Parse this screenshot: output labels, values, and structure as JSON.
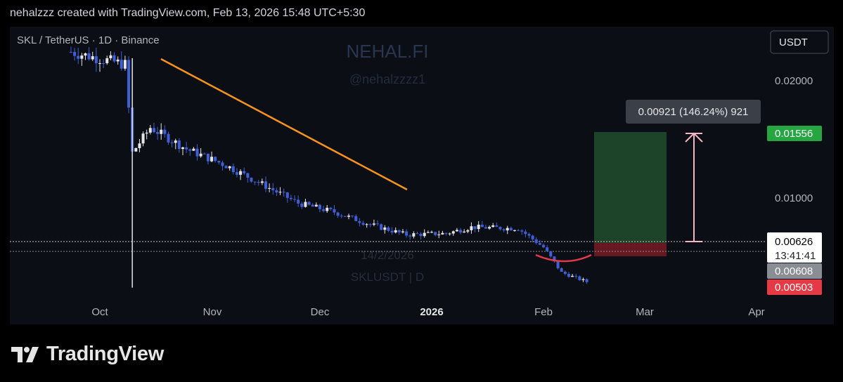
{
  "header": {
    "caption": "nehalzzz created with TradingView.com, Feb 13, 2026 15:48 UTC+5:30"
  },
  "symbol_info": "SKL / TetherUS · 1D · Binance",
  "currency_button": "USDT",
  "watermark": {
    "title": "NEHAL.FI",
    "handle": "@nehalzzzz1",
    "date": "14/2/2026",
    "ticker": "SKLUSDT | D"
  },
  "measure_label": "0.00921 (146.24%) 921",
  "price_tags": {
    "target": "0.01556",
    "last": "0.00626",
    "countdown": "13:41:41",
    "entry": "0.00608",
    "stop": "0.00503"
  },
  "footer": {
    "brand": "TradingView"
  },
  "colors": {
    "up_candle": "#e6e6e6",
    "down_candle": "#3f5fd6",
    "trendline": "#f7931a",
    "target_zone": "#1f4a2a",
    "stop_zone": "#6b1a22",
    "measure_arrow": "#f4b6c2",
    "support_arc": "#e0394a",
    "target_tag": "#26a641",
    "stop_tag": "#e53946",
    "entry_tag": "#8a8d94"
  },
  "chart_data": {
    "type": "candlestick",
    "pair": "SKLUSDT",
    "interval": "1D",
    "y_axis_ticks": [
      "0.02000",
      "0.01000"
    ],
    "x_axis_ticks": [
      "Oct",
      "Nov",
      "Dec",
      "2026",
      "Feb",
      "Mar",
      "Apr"
    ],
    "ylim": [
      0.0045,
      0.0265
    ],
    "approx_close_path": [
      [
        "2025-09-23",
        0.0245
      ],
      [
        "2025-10-08",
        0.0235
      ],
      [
        "2025-10-10",
        0.0165
      ],
      [
        "2025-10-15",
        0.0185
      ],
      [
        "2025-10-25",
        0.0168
      ],
      [
        "2025-11-05",
        0.0155
      ],
      [
        "2025-11-15",
        0.014
      ],
      [
        "2025-11-25",
        0.0125
      ],
      [
        "2025-12-05",
        0.0118
      ],
      [
        "2025-12-15",
        0.0108
      ],
      [
        "2025-12-25",
        0.01
      ],
      [
        "2026-01-05",
        0.0101
      ],
      [
        "2026-01-12",
        0.0106
      ],
      [
        "2026-01-25",
        0.0105
      ],
      [
        "2026-02-01",
        0.009
      ],
      [
        "2026-02-06",
        0.007
      ],
      [
        "2026-02-13",
        0.00626
      ]
    ],
    "trendline": [
      [
        "2025-10-15",
        0.0216
      ],
      [
        "2025-12-26",
        0.0105
      ]
    ],
    "position": {
      "target": 0.01556,
      "entry": 0.00608,
      "stop": 0.00503,
      "measure": "0.00921 (146.24%) 921"
    },
    "last_price": 0.00626
  }
}
